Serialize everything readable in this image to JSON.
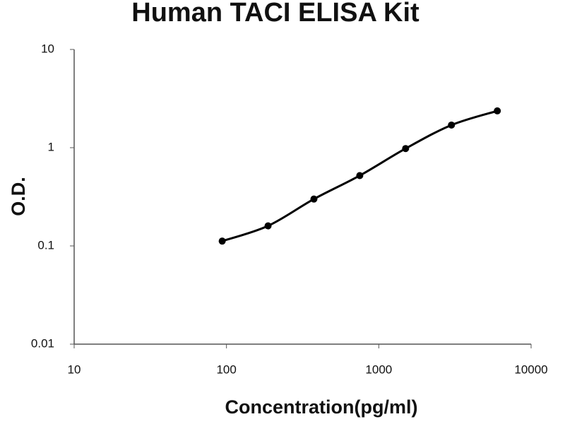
{
  "chart_data": {
    "type": "scatter",
    "title": "Human TACI ELISA Kit",
    "x_label": "Concentration(pg/ml)",
    "y_label": "O.D.",
    "x": [
      93.75,
      187.5,
      375,
      750,
      1500,
      3000,
      6000
    ],
    "series": [
      {
        "color": "#000000",
        "values": [
          0.112,
          0.16,
          0.3,
          0.52,
          0.98,
          1.7,
          2.37
        ]
      }
    ],
    "xscale": "log",
    "yscale": "log",
    "xlim": [
      10,
      10000
    ],
    "ylim": [
      0.01,
      10
    ],
    "xticks": [
      10,
      100,
      1000,
      10000
    ],
    "yticks": [
      0.01,
      0.1,
      1,
      10
    ],
    "trendline": "smooth",
    "grid": false
  }
}
